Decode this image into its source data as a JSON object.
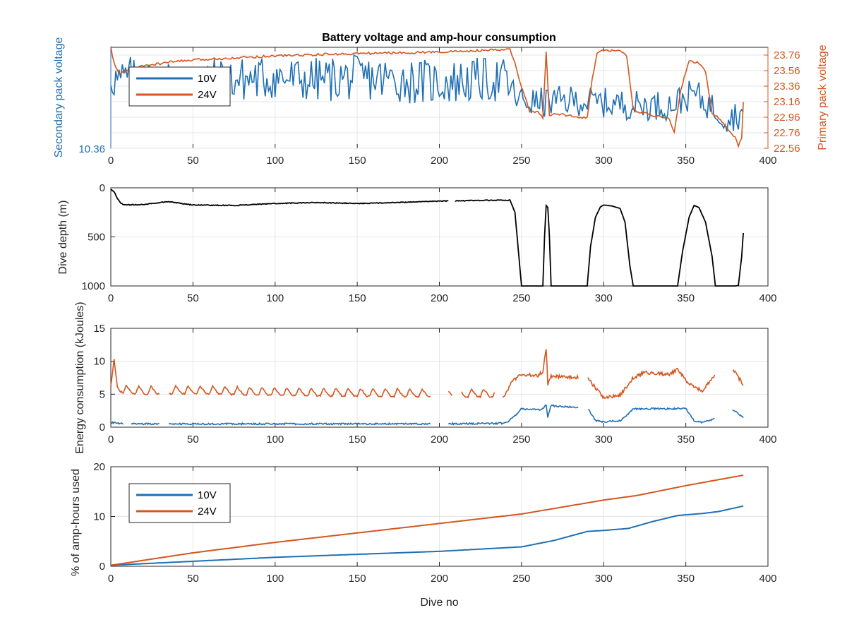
{
  "figure": {
    "title": "Battery voltage and amp-hour consumption",
    "background": "#ffffff",
    "colors": {
      "blue": "#1f6fb4",
      "orange": "#d4561e",
      "black": "#000000",
      "grid": "#e6e6e6",
      "axis": "#262626"
    }
  },
  "chart_data": [
    {
      "id": "voltage",
      "type": "line",
      "xlim": [
        0,
        400
      ],
      "x_ticks": [
        0,
        50,
        100,
        150,
        200,
        250,
        300,
        350,
        400
      ],
      "ylabel_left": "Secondary pack voltage",
      "ylabel_right": "Primary pack voltage",
      "y_left_ticks": [
        "10.36"
      ],
      "y_right_ticks": [
        "22.56",
        "22.76",
        "22.96",
        "23.16",
        "23.36",
        "23.56",
        "23.76"
      ],
      "ylim_right": [
        22.56,
        23.86
      ],
      "legend": {
        "position": "upper-left",
        "entries": [
          "10V",
          "24V"
        ]
      },
      "grid": true,
      "series": [
        {
          "name": "10V",
          "axis": "left",
          "color": "#1f6fb4",
          "pattern": "noisy",
          "x": [
            0,
            5,
            10,
            25,
            50,
            75,
            100,
            120,
            150,
            175,
            200,
            225,
            240,
            248,
            260,
            280,
            300,
            320,
            340,
            350,
            355,
            360,
            375,
            385
          ],
          "y": [
            10.65,
            10.62,
            10.64,
            10.62,
            10.63,
            10.63,
            10.64,
            10.63,
            10.64,
            10.63,
            10.62,
            10.63,
            10.63,
            10.55,
            10.54,
            10.55,
            10.54,
            10.53,
            10.53,
            10.56,
            10.58,
            10.55,
            10.48,
            10.5
          ]
        },
        {
          "name": "24V",
          "axis": "right",
          "color": "#d4561e",
          "pattern": "smooth",
          "x": [
            0,
            2,
            5,
            10,
            20,
            40,
            70,
            100,
            150,
            200,
            243,
            246,
            250,
            255,
            260,
            263,
            265,
            267,
            270,
            280,
            290,
            293,
            296,
            300,
            310,
            314,
            318,
            330,
            340,
            343,
            347,
            352,
            358,
            362,
            366,
            370,
            375,
            380,
            382,
            384,
            385
          ],
          "y": [
            23.86,
            23.65,
            23.52,
            23.56,
            23.62,
            23.68,
            23.72,
            23.75,
            23.78,
            23.8,
            23.83,
            23.65,
            23.35,
            23.04,
            23.02,
            22.95,
            23.8,
            22.98,
            23.0,
            22.98,
            22.95,
            23.45,
            23.78,
            23.82,
            23.82,
            23.75,
            23.05,
            22.98,
            22.94,
            22.76,
            23.32,
            23.68,
            23.66,
            23.55,
            23.02,
            22.95,
            22.82,
            22.7,
            22.58,
            22.7,
            23.15
          ]
        }
      ]
    },
    {
      "id": "depth",
      "type": "line",
      "xlim": [
        0,
        400
      ],
      "ylim": [
        0,
        1000
      ],
      "y_reversed": true,
      "x_ticks": [
        0,
        50,
        100,
        150,
        200,
        250,
        300,
        350,
        400
      ],
      "y_ticks": [
        0,
        500,
        1000
      ],
      "ylabel": "Dive depth (m)",
      "grid": true,
      "series": [
        {
          "color": "#000000",
          "x": [
            0,
            2,
            4,
            6,
            8,
            20,
            35,
            50,
            75,
            100,
            125,
            150,
            175,
            200,
            220,
            243,
            246,
            250,
            263,
            264,
            265,
            266,
            267,
            268,
            270,
            280,
            290,
            292,
            295,
            298,
            300,
            305,
            310,
            313,
            316,
            318,
            325,
            345,
            348,
            352,
            355,
            358,
            362,
            366,
            368,
            370,
            380,
            382,
            384,
            385
          ],
          "y": [
            15,
            40,
            110,
            155,
            175,
            170,
            140,
            175,
            180,
            160,
            150,
            160,
            150,
            135,
            130,
            125,
            250,
            1000,
            1000,
            500,
            180,
            200,
            500,
            1000,
            1000,
            1000,
            1000,
            600,
            300,
            195,
            175,
            185,
            210,
            350,
            800,
            1000,
            1000,
            1000,
            650,
            300,
            180,
            200,
            350,
            700,
            1000,
            1000,
            1000,
            995,
            700,
            460
          ]
        }
      ]
    },
    {
      "id": "energy",
      "type": "line",
      "xlim": [
        0,
        400
      ],
      "ylim": [
        0,
        15
      ],
      "x_ticks": [
        0,
        50,
        100,
        150,
        200,
        250,
        300,
        350,
        400
      ],
      "y_ticks": [
        0,
        5,
        10,
        15
      ],
      "ylabel": "Energy consumption (kJoules)",
      "grid": true,
      "series": [
        {
          "color": "#d4561e",
          "pattern": "oscillating",
          "x": [
            0,
            2,
            4,
            8,
            20,
            50,
            100,
            150,
            200,
            240,
            245,
            250,
            260,
            263,
            265,
            266,
            268,
            275,
            290,
            300,
            310,
            318,
            325,
            340,
            345,
            352,
            360,
            370,
            375,
            385
          ],
          "y": [
            6.5,
            9.5,
            6.0,
            5.6,
            5.4,
            5.5,
            5.2,
            5.1,
            5.0,
            5.0,
            7.2,
            8.0,
            7.8,
            8.5,
            12.0,
            6.5,
            7.8,
            7.6,
            7.5,
            4.5,
            4.8,
            7.5,
            8.3,
            8.0,
            8.8,
            6.5,
            5.5,
            8.5,
            10.0,
            6.5
          ],
          "gaps": [
            [
              30,
              35
            ],
            [
              195,
              205
            ],
            [
              208,
              213
            ],
            [
              234,
              238
            ],
            [
              285,
              290
            ],
            [
              368,
              378
            ]
          ]
        },
        {
          "color": "#1f6fb4",
          "pattern": "flat",
          "x": [
            0,
            10,
            50,
            100,
            150,
            200,
            240,
            245,
            250,
            262,
            265,
            266,
            268,
            275,
            290,
            295,
            300,
            310,
            315,
            318,
            350,
            355,
            360,
            370,
            375,
            385
          ],
          "y": [
            0.7,
            0.5,
            0.5,
            0.5,
            0.5,
            0.5,
            0.6,
            1.5,
            2.8,
            2.6,
            3.4,
            1.5,
            3.3,
            3.1,
            3.0,
            1.0,
            0.8,
            1.0,
            2.0,
            2.8,
            2.8,
            1.0,
            0.7,
            1.5,
            3.3,
            1.5
          ],
          "gaps": [
            [
              8,
              12
            ],
            [
              30,
              35
            ],
            [
              195,
              205
            ],
            [
              285,
              290
            ],
            [
              368,
              378
            ]
          ]
        }
      ]
    },
    {
      "id": "amphours",
      "type": "line",
      "xlim": [
        0,
        400
      ],
      "ylim": [
        0,
        20
      ],
      "x_ticks": [
        0,
        50,
        100,
        150,
        200,
        250,
        300,
        350,
        400
      ],
      "y_ticks": [
        0,
        10,
        20
      ],
      "ylabel": "% of amp-hours used",
      "xlabel": "Dive no",
      "legend": {
        "position": "upper-left",
        "entries": [
          "10V",
          "24V"
        ]
      },
      "grid": true,
      "series": [
        {
          "name": "10V",
          "color": "#1f6fb4",
          "x": [
            0,
            50,
            100,
            150,
            200,
            250,
            270,
            290,
            300,
            315,
            330,
            345,
            360,
            370,
            385
          ],
          "y": [
            0.2,
            1.0,
            1.8,
            2.4,
            3.0,
            3.9,
            5.2,
            7.0,
            7.2,
            7.6,
            9.0,
            10.2,
            10.6,
            11.0,
            12.1
          ]
        },
        {
          "name": "24V",
          "color": "#d4561e",
          "x": [
            0,
            50,
            100,
            150,
            200,
            250,
            300,
            320,
            350,
            385
          ],
          "y": [
            0.2,
            2.7,
            4.8,
            6.7,
            8.6,
            10.5,
            13.3,
            14.2,
            16.2,
            18.3
          ]
        }
      ]
    }
  ]
}
